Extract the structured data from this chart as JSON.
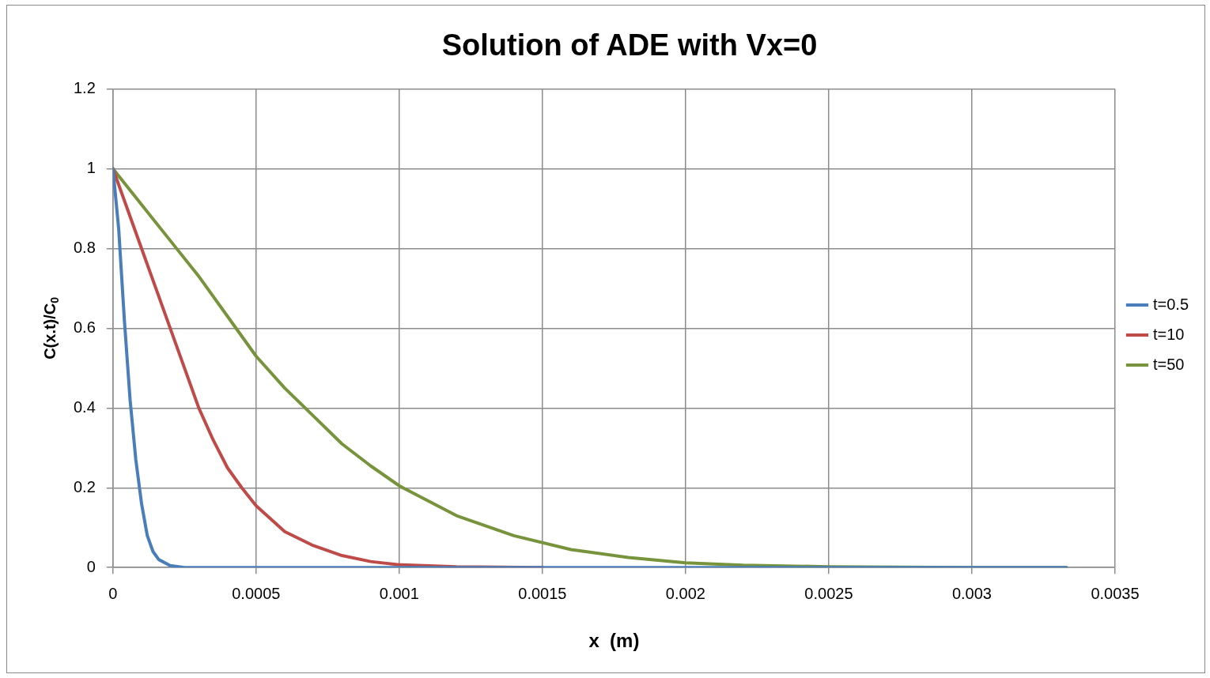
{
  "chart_data": {
    "type": "line",
    "title": "Solution of ADE with Vx=0",
    "xlabel": "x  (m)",
    "ylabel": "C(x.t)/C$_{0}$",
    "xlim": [
      0,
      0.0035
    ],
    "xticks": [
      0,
      0.0005,
      0.001,
      0.0015,
      0.002,
      0.0025,
      0.003,
      0.0035
    ],
    "ylim": [
      0,
      1.2
    ],
    "yticks": [
      0,
      0.2,
      0.4,
      0.6,
      0.8,
      1,
      1.2
    ],
    "grid": true,
    "legend": "right",
    "marker": "none",
    "line_style": "solid",
    "series": [
      {
        "name": "t=0.5",
        "color": "#4a7ebb",
        "x": [
          0,
          2e-05,
          4e-05,
          6e-05,
          8e-05,
          0.0001,
          0.00012,
          0.00014,
          0.00016,
          0.0002,
          0.00025,
          0.0005,
          0.001,
          0.002,
          0.003,
          0.00333
        ],
        "values": [
          1,
          0.85,
          0.62,
          0.42,
          0.27,
          0.16,
          0.08,
          0.04,
          0.02,
          0.005,
          0,
          0,
          0,
          0,
          0,
          0
        ]
      },
      {
        "name": "t=10",
        "color": "#be4b48",
        "x": [
          0,
          5e-05,
          0.0001,
          0.00015,
          0.0002,
          0.00025,
          0.0003,
          0.00035,
          0.0004,
          0.00045,
          0.0005,
          0.0006,
          0.0007,
          0.0008,
          0.0009,
          0.001,
          0.0012,
          0.0015
        ],
        "values": [
          1,
          0.9,
          0.8,
          0.7,
          0.6,
          0.5,
          0.4,
          0.32,
          0.25,
          0.2,
          0.155,
          0.09,
          0.055,
          0.03,
          0.015,
          0.007,
          0.002,
          0
        ]
      },
      {
        "name": "t=50",
        "color": "#77933c",
        "x": [
          0,
          0.0001,
          0.0002,
          0.0003,
          0.0004,
          0.0005,
          0.0006,
          0.0007,
          0.0008,
          0.0009,
          0.001,
          0.0012,
          0.0014,
          0.0016,
          0.0018,
          0.002,
          0.0022,
          0.0025,
          0.003,
          0.00333
        ],
        "values": [
          1,
          0.91,
          0.82,
          0.73,
          0.63,
          0.53,
          0.45,
          0.38,
          0.31,
          0.255,
          0.205,
          0.13,
          0.08,
          0.045,
          0.025,
          0.012,
          0.006,
          0.002,
          0,
          0
        ]
      }
    ]
  }
}
